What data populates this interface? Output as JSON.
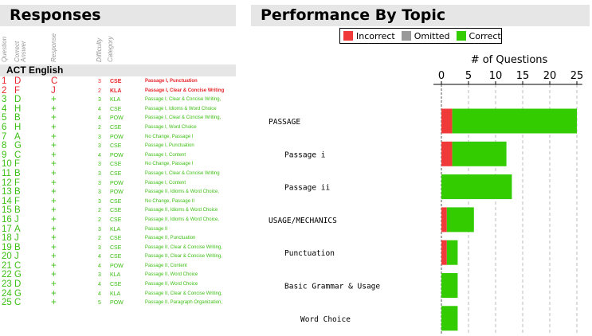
{
  "responses": {
    "title": "Responses",
    "columns": [
      "Question",
      "Correct Answer",
      "Response",
      "Difficulty",
      "Category"
    ],
    "section": "ACT English",
    "rows": [
      {
        "q": "1",
        "ans": "D",
        "resp": "C",
        "diff": "3",
        "cat": "CSE",
        "topic": "Passage I, Punctuation",
        "correct": false
      },
      {
        "q": "2",
        "ans": "F",
        "resp": "J",
        "diff": "2",
        "cat": "KLA",
        "topic": "Passage I, Clear & Concise Writing",
        "correct": false
      },
      {
        "q": "3",
        "ans": "D",
        "resp": "+",
        "diff": "3",
        "cat": "KLA",
        "topic": "Passage I, Clear & Concise Writing,",
        "correct": true
      },
      {
        "q": "4",
        "ans": "H",
        "resp": "+",
        "diff": "4",
        "cat": "CSE",
        "topic": "Passage I, Idioms & Word Choice",
        "correct": true
      },
      {
        "q": "5",
        "ans": "B",
        "resp": "+",
        "diff": "4",
        "cat": "POW",
        "topic": "Passage I, Clear & Concise Writing,",
        "correct": true
      },
      {
        "q": "6",
        "ans": "H",
        "resp": "+",
        "diff": "2",
        "cat": "CSE",
        "topic": "Passage I, Word Choice",
        "correct": true
      },
      {
        "q": "7",
        "ans": "A",
        "resp": "+",
        "diff": "3",
        "cat": "POW",
        "topic": "No Change, Passage I",
        "correct": true
      },
      {
        "q": "8",
        "ans": "G",
        "resp": "+",
        "diff": "3",
        "cat": "CSE",
        "topic": "Passage I, Punctuation",
        "correct": true
      },
      {
        "q": "9",
        "ans": "C",
        "resp": "+",
        "diff": "4",
        "cat": "POW",
        "topic": "Passage I, Content",
        "correct": true
      },
      {
        "q": "10",
        "ans": "F",
        "resp": "+",
        "diff": "3",
        "cat": "CSE",
        "topic": "No Change, Passage I",
        "correct": true
      },
      {
        "q": "11",
        "ans": "B",
        "resp": "+",
        "diff": "3",
        "cat": "CSE",
        "topic": "Passage I, Clear & Concise Writing",
        "correct": true
      },
      {
        "q": "12",
        "ans": "F",
        "resp": "+",
        "diff": "3",
        "cat": "POW",
        "topic": "Passage I, Content",
        "correct": true
      },
      {
        "q": "13",
        "ans": "B",
        "resp": "+",
        "diff": "3",
        "cat": "POW",
        "topic": "Passage II, Idioms & Word Choice,",
        "correct": true
      },
      {
        "q": "14",
        "ans": "F",
        "resp": "+",
        "diff": "3",
        "cat": "CSE",
        "topic": "No Change, Passage II",
        "correct": true
      },
      {
        "q": "15",
        "ans": "B",
        "resp": "+",
        "diff": "2",
        "cat": "CSE",
        "topic": "Passage II, Idioms & Word Choice",
        "correct": true
      },
      {
        "q": "16",
        "ans": "J",
        "resp": "+",
        "diff": "2",
        "cat": "CSE",
        "topic": "Passage II, Idioms & Word Choice,",
        "correct": true
      },
      {
        "q": "17",
        "ans": "A",
        "resp": "+",
        "diff": "3",
        "cat": "KLA",
        "topic": "Passage II",
        "correct": true
      },
      {
        "q": "18",
        "ans": "J",
        "resp": "+",
        "diff": "2",
        "cat": "CSE",
        "topic": "Passage II, Punctuation",
        "correct": true
      },
      {
        "q": "19",
        "ans": "B",
        "resp": "+",
        "diff": "3",
        "cat": "CSE",
        "topic": "Passage II, Clear & Concise Writing,",
        "correct": true
      },
      {
        "q": "20",
        "ans": "J",
        "resp": "+",
        "diff": "4",
        "cat": "CSE",
        "topic": "Passage II, Clear & Concise Writing,",
        "correct": true
      },
      {
        "q": "21",
        "ans": "C",
        "resp": "+",
        "diff": "4",
        "cat": "POW",
        "topic": "Passage II, Content",
        "correct": true
      },
      {
        "q": "22",
        "ans": "G",
        "resp": "+",
        "diff": "3",
        "cat": "KLA",
        "topic": "Passage II, Word Choice",
        "correct": true
      },
      {
        "q": "23",
        "ans": "D",
        "resp": "+",
        "diff": "4",
        "cat": "CSE",
        "topic": "Passage II, Word Choice",
        "correct": true
      },
      {
        "q": "24",
        "ans": "G",
        "resp": "+",
        "diff": "4",
        "cat": "KLA",
        "topic": "Passage II, Clear & Concise Writing,",
        "correct": true
      },
      {
        "q": "25",
        "ans": "C",
        "resp": "+",
        "diff": "5",
        "cat": "POW",
        "topic": "Passage II, Paragraph Organization,",
        "correct": true
      }
    ]
  },
  "performance": {
    "title": "Performance By Topic",
    "legend": [
      {
        "label": "Incorrect",
        "color": "#f03a3a"
      },
      {
        "label": "Omitted",
        "color": "#999999"
      },
      {
        "label": "Correct",
        "color": "#33cc00"
      }
    ]
  },
  "chart_data": {
    "type": "bar",
    "orientation": "horizontal",
    "stacked": true,
    "xlabel": "# of Questions",
    "xlim": [
      0,
      26
    ],
    "xticks": [
      0,
      5,
      10,
      15,
      20,
      25
    ],
    "grid": "vertical-dashed",
    "categories": [
      "PASSAGE",
      "Passage i",
      "Passage ii",
      "USAGE/MECHANICS",
      "Punctuation",
      "Basic Grammar & Usage",
      "Word Choice"
    ],
    "category_indent": [
      0,
      1,
      1,
      0,
      1,
      1,
      2
    ],
    "series": [
      {
        "name": "Incorrect",
        "color": "#f03a3a",
        "values": [
          2,
          2,
          0,
          1,
          1,
          0,
          0
        ]
      },
      {
        "name": "Omitted",
        "color": "#999999",
        "values": [
          0,
          0,
          0,
          0,
          0,
          0,
          0
        ]
      },
      {
        "name": "Correct",
        "color": "#33cc00",
        "values": [
          23,
          10,
          13,
          5,
          2,
          3,
          3
        ]
      }
    ]
  }
}
